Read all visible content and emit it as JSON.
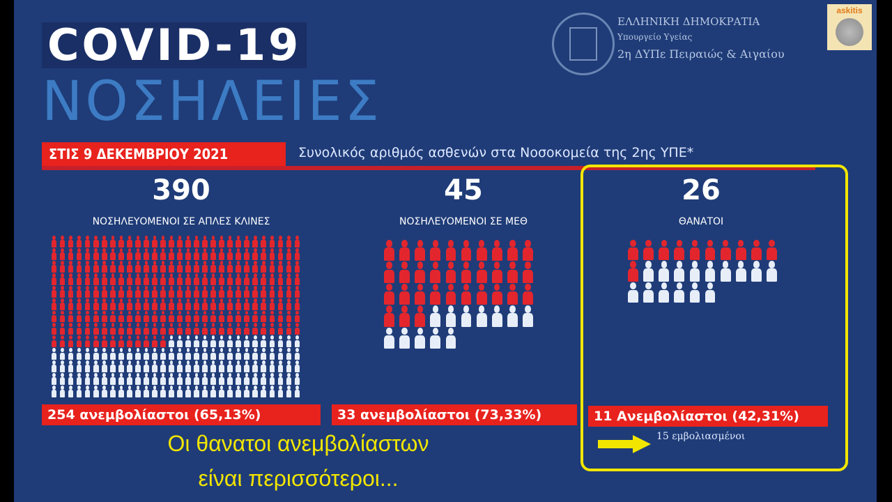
{
  "title": "COVID-19",
  "subtitle_title": "ΝΟΣΗΛΕΙΕΣ",
  "org": {
    "line1": "ΕΛΛΗΝΙΚΗ ΔΗΜΟΚΡΑΤΙΑ",
    "line2": "Υπουργείο Υγείας",
    "line3": "2η ΔΥΠε Πειραιώς & Αιγαίου"
  },
  "badge": "askitis",
  "date": "ΣΤΙΣ 9 ΔΕΚΕΜΒΡΙΟΥ 2021",
  "description": "Συνολικός αριθμός ασθενών στα Νοσοκομεία της 2ης ΥΠΕ*",
  "colors": {
    "background": "#1f3c78",
    "unvaccinated": "#e3262d",
    "vaccinated": "#e8eef8",
    "highlight": "#f2e600"
  },
  "panels": [
    {
      "total": "390",
      "label": "ΝΟΣΗΛΕΥΟΜΕΝΟΙ ΣΕ ΑΠΛΕΣ ΚΛΙΝΕΣ",
      "unvaccinated": 254,
      "vaccinated": 136,
      "bar": "254 ανεμβολίαστοι (65,13%)"
    },
    {
      "total": "45",
      "label": "ΝΟΣΗΛΕΥΟΜΕΝΟΙ ΣΕ ΜΕΘ",
      "unvaccinated": 33,
      "vaccinated": 12,
      "bar": "33 ανεμβολίαστοι (73,33%)"
    },
    {
      "total": "26",
      "label": "ΘΑΝΑΤΟΙ",
      "unvaccinated": 11,
      "vaccinated": 15,
      "bar": "11 Ανεμβολίαστοι (42,31%)",
      "note": "15 εμβολιασμένοι"
    }
  ],
  "caption": {
    "line1": "Οι θανατοι ανεμβολίαστων",
    "line2": "είναι περισσότεροι..."
  }
}
